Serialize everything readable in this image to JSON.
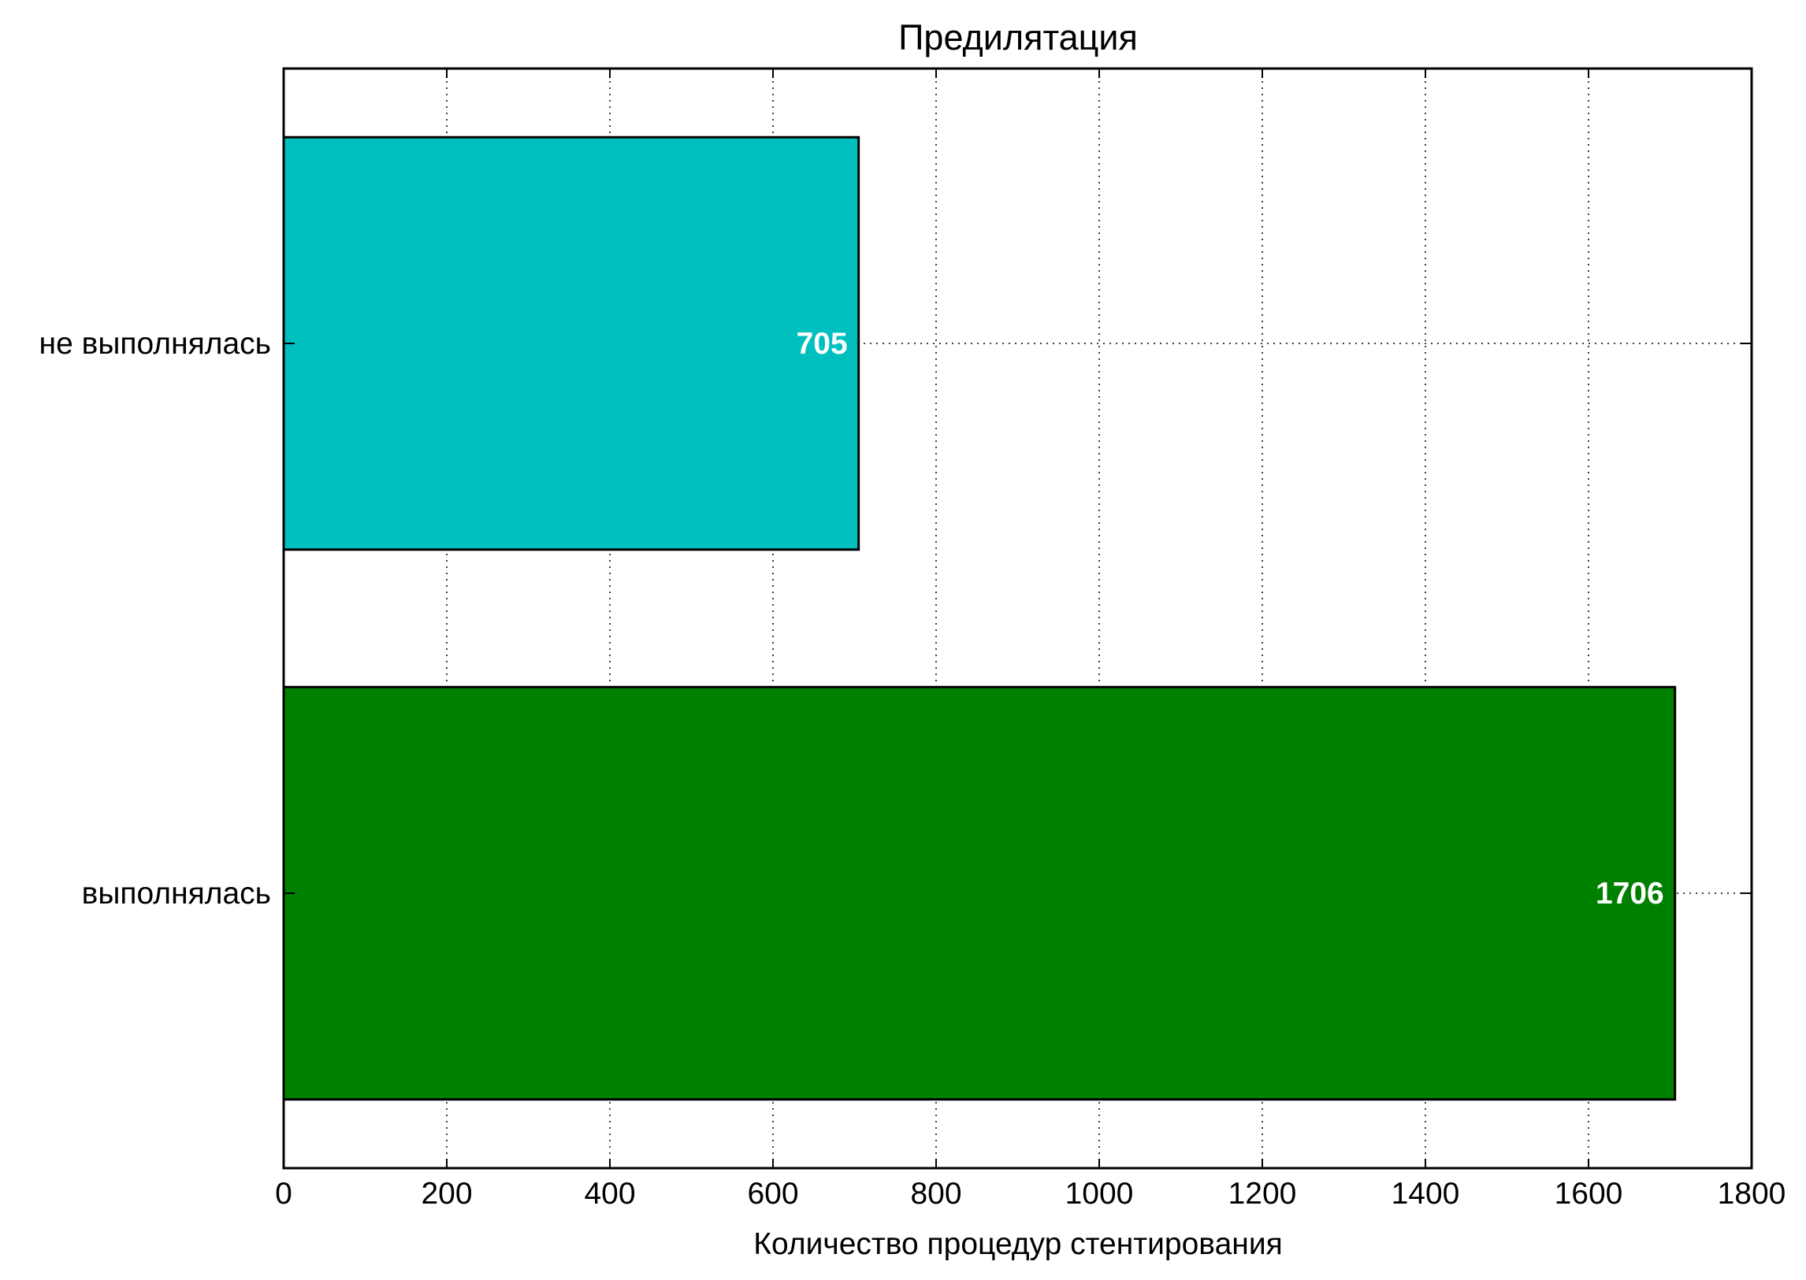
{
  "chart_data": {
    "type": "bar",
    "orientation": "horizontal",
    "title": "Предилятация",
    "xlabel": "Количество процедур стентирования",
    "ylabel": "",
    "categories": [
      "не выполнялась",
      "выполнялась"
    ],
    "values": [
      705,
      1706
    ],
    "value_labels": [
      "705",
      "1706"
    ],
    "colors": [
      "#00bfbf",
      "#008000"
    ],
    "xlim": [
      0,
      1800
    ],
    "xticks": [
      0,
      200,
      400,
      600,
      800,
      1000,
      1200,
      1400,
      1600,
      1800
    ],
    "xtick_labels": [
      "0",
      "200",
      "400",
      "600",
      "800",
      "1000",
      "1200",
      "1400",
      "1600",
      "1800"
    ],
    "grid": true,
    "grid_style": "dotted",
    "legend": "none"
  }
}
